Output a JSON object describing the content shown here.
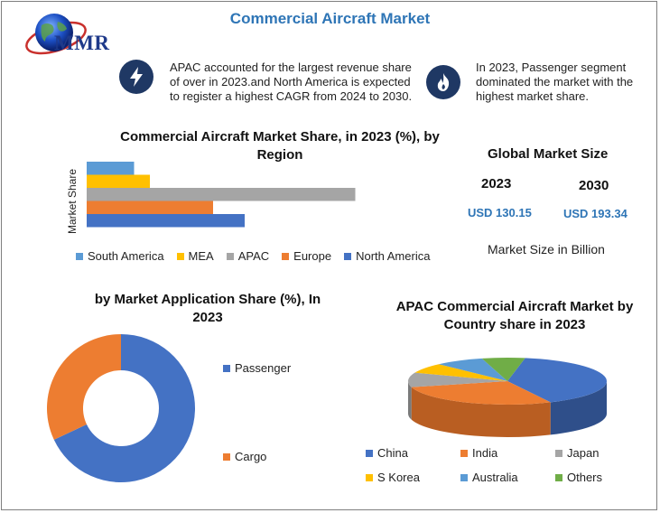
{
  "header": {
    "title": "Commercial Aircraft Market",
    "logo_text": "MMR"
  },
  "highlights": [
    {
      "icon": "lightning-icon",
      "text": [
        "APAC accounted for the largest revenue share",
        "of over in 2023.and North America is expected",
        "to register a highest CAGR from 2024 to 2030."
      ]
    },
    {
      "icon": "flame-icon",
      "text": [
        "In  2023,  Passenger  segment",
        "dominated the market with the",
        "highest market share."
      ]
    }
  ],
  "global_market": {
    "title": "Global Market Size",
    "years": [
      "2023",
      "2030"
    ],
    "values": [
      "USD 130.15",
      "USD 193.34"
    ],
    "note": "Market Size in Billion"
  },
  "colors": {
    "title": "#2e75b6",
    "south_america": "#5b9bd5",
    "mea": "#ffc000",
    "apac": "#a5a5a5",
    "europe": "#ed7d31",
    "north_america": "#4472c4",
    "others": "#70ad47"
  },
  "chart_data": [
    {
      "type": "bar",
      "orientation": "horizontal",
      "title": "Commercial Aircraft Market Share, in 2023 (%), by Region",
      "title_lines": [
        "Commercial Aircraft Market Share, in 2023 (%), by",
        "Region"
      ],
      "ylabel": "Market Share",
      "categories": [
        "South America",
        "MEA",
        "APAC",
        "Europe",
        "North America"
      ],
      "values": [
        9,
        12,
        51,
        24,
        30
      ],
      "xlim": [
        0,
        60
      ],
      "grid": false,
      "legend": "bottom"
    },
    {
      "type": "pie",
      "variant": "donut",
      "title": "by Market Application Share (%), In 2023",
      "title_lines": [
        "by Market Application Share (%), In",
        "2023"
      ],
      "categories": [
        "Passenger",
        "Cargo"
      ],
      "values": [
        68,
        32
      ],
      "legend": "right"
    },
    {
      "type": "pie",
      "variant": "3d",
      "title": "APAC Commercial Aircraft Market by Country share in 2023",
      "title_lines": [
        "APAC Commercial Aircraft Market by",
        "Country share in 2023"
      ],
      "categories": [
        "China",
        "India",
        "Japan",
        "S Korea",
        "Australia",
        "Others"
      ],
      "values": [
        40,
        28,
        10,
        7,
        8,
        7
      ],
      "legend": "bottom"
    }
  ]
}
